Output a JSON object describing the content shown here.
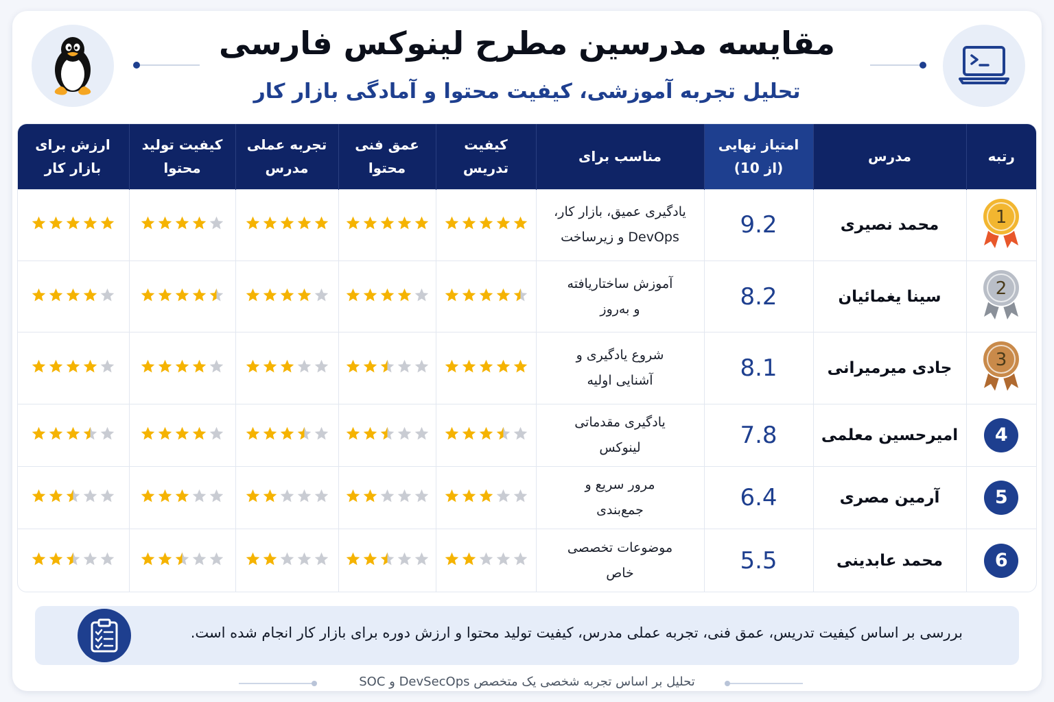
{
  "header": {
    "title": "مقایسه مدرسین مطرح لینوکس فارسی",
    "subtitle": "تحلیل تجربه آموزشی، کیفیت محتوا و آمادگی بازار کار",
    "left_icon": "linux-penguin-icon",
    "right_icon": "terminal-laptop-icon"
  },
  "table": {
    "columns": {
      "rank": "رتبه",
      "instructor": "مدرس",
      "score_line1": "امتیاز نهایی",
      "score_line2": "(از 10)",
      "suitable": "مناسب برای",
      "teaching": "کیفیت تدریس",
      "depth_line1": "عمق فنی",
      "depth_line2": "محتوا",
      "experience_line1": "تجربه عملی",
      "experience_line2": "مدرس",
      "production_line1": "کیفیت تولید",
      "production_line2": "محتوا",
      "market_line1": "ارزش برای",
      "market_line2": "بازار کار"
    },
    "rows": [
      {
        "rank": "1",
        "rank_style": "gold-medal",
        "name": "محمد نصیری",
        "score": "9.2",
        "suitable_line1": "یادگیری عمیق، بازار کار،",
        "suitable_line2": "DevOps و زیرساخت",
        "teaching": 5,
        "depth": 5,
        "experience": 5,
        "production": 4,
        "market": 5
      },
      {
        "rank": "2",
        "rank_style": "silver-medal",
        "name": "سینا یغمائیان",
        "score": "8.2",
        "suitable_line1": "آموزش ساختاریافته",
        "suitable_line2": "و به‌روز",
        "teaching": 4.5,
        "depth": 4,
        "experience": 4,
        "production": 4.5,
        "market": 4
      },
      {
        "rank": "3",
        "rank_style": "bronze-medal",
        "name": "جادی میرمیرانی",
        "score": "8.1",
        "suitable_line1": "شروع یادگیری و",
        "suitable_line2": "آشنایی اولیه",
        "teaching": 5,
        "depth": 2.5,
        "experience": 3,
        "production": 4,
        "market": 4
      },
      {
        "rank": "4",
        "rank_style": "number",
        "name": "امیرحسین معلمی",
        "score": "7.8",
        "suitable_line1": "یادگیری مقدماتی",
        "suitable_line2": "لینوکس",
        "teaching": 3.5,
        "depth": 2.5,
        "experience": 3.5,
        "production": 4,
        "market": 3.5
      },
      {
        "rank": "5",
        "rank_style": "number",
        "name": "آرمین مصری",
        "score": "6.4",
        "suitable_line1": "مرور سریع و",
        "suitable_line2": "جمع‌بندی",
        "teaching": 3,
        "depth": 2,
        "experience": 2,
        "production": 3,
        "market": 2.5
      },
      {
        "rank": "6",
        "rank_style": "number",
        "name": "محمد عابدینی",
        "score": "5.5",
        "suitable_line1": "موضوعات تخصصی",
        "suitable_line2": "خاص",
        "teaching": 2,
        "depth": 2.5,
        "experience": 2,
        "production": 2.5,
        "market": 2.5
      }
    ]
  },
  "note": {
    "text": "بررسی بر اساس کیفیت تدریس، عمق فنی، تجربه عملی مدرس، کیفیت تولید محتوا و ارزش دوره برای بازار کار انجام شده است.",
    "icon": "clipboard-checklist-icon"
  },
  "footer": {
    "text": "تحلیل بر اساس تجربه شخصی یک متخصص DevSecOps و SOC"
  },
  "colors": {
    "header_bg": "#0f2466",
    "accent": "#1e3f8f",
    "star": "#f5b301",
    "star_empty": "#c9ccd3",
    "gold": "#f2b630",
    "silver": "#b9bec7",
    "bronze": "#c98a4a"
  }
}
